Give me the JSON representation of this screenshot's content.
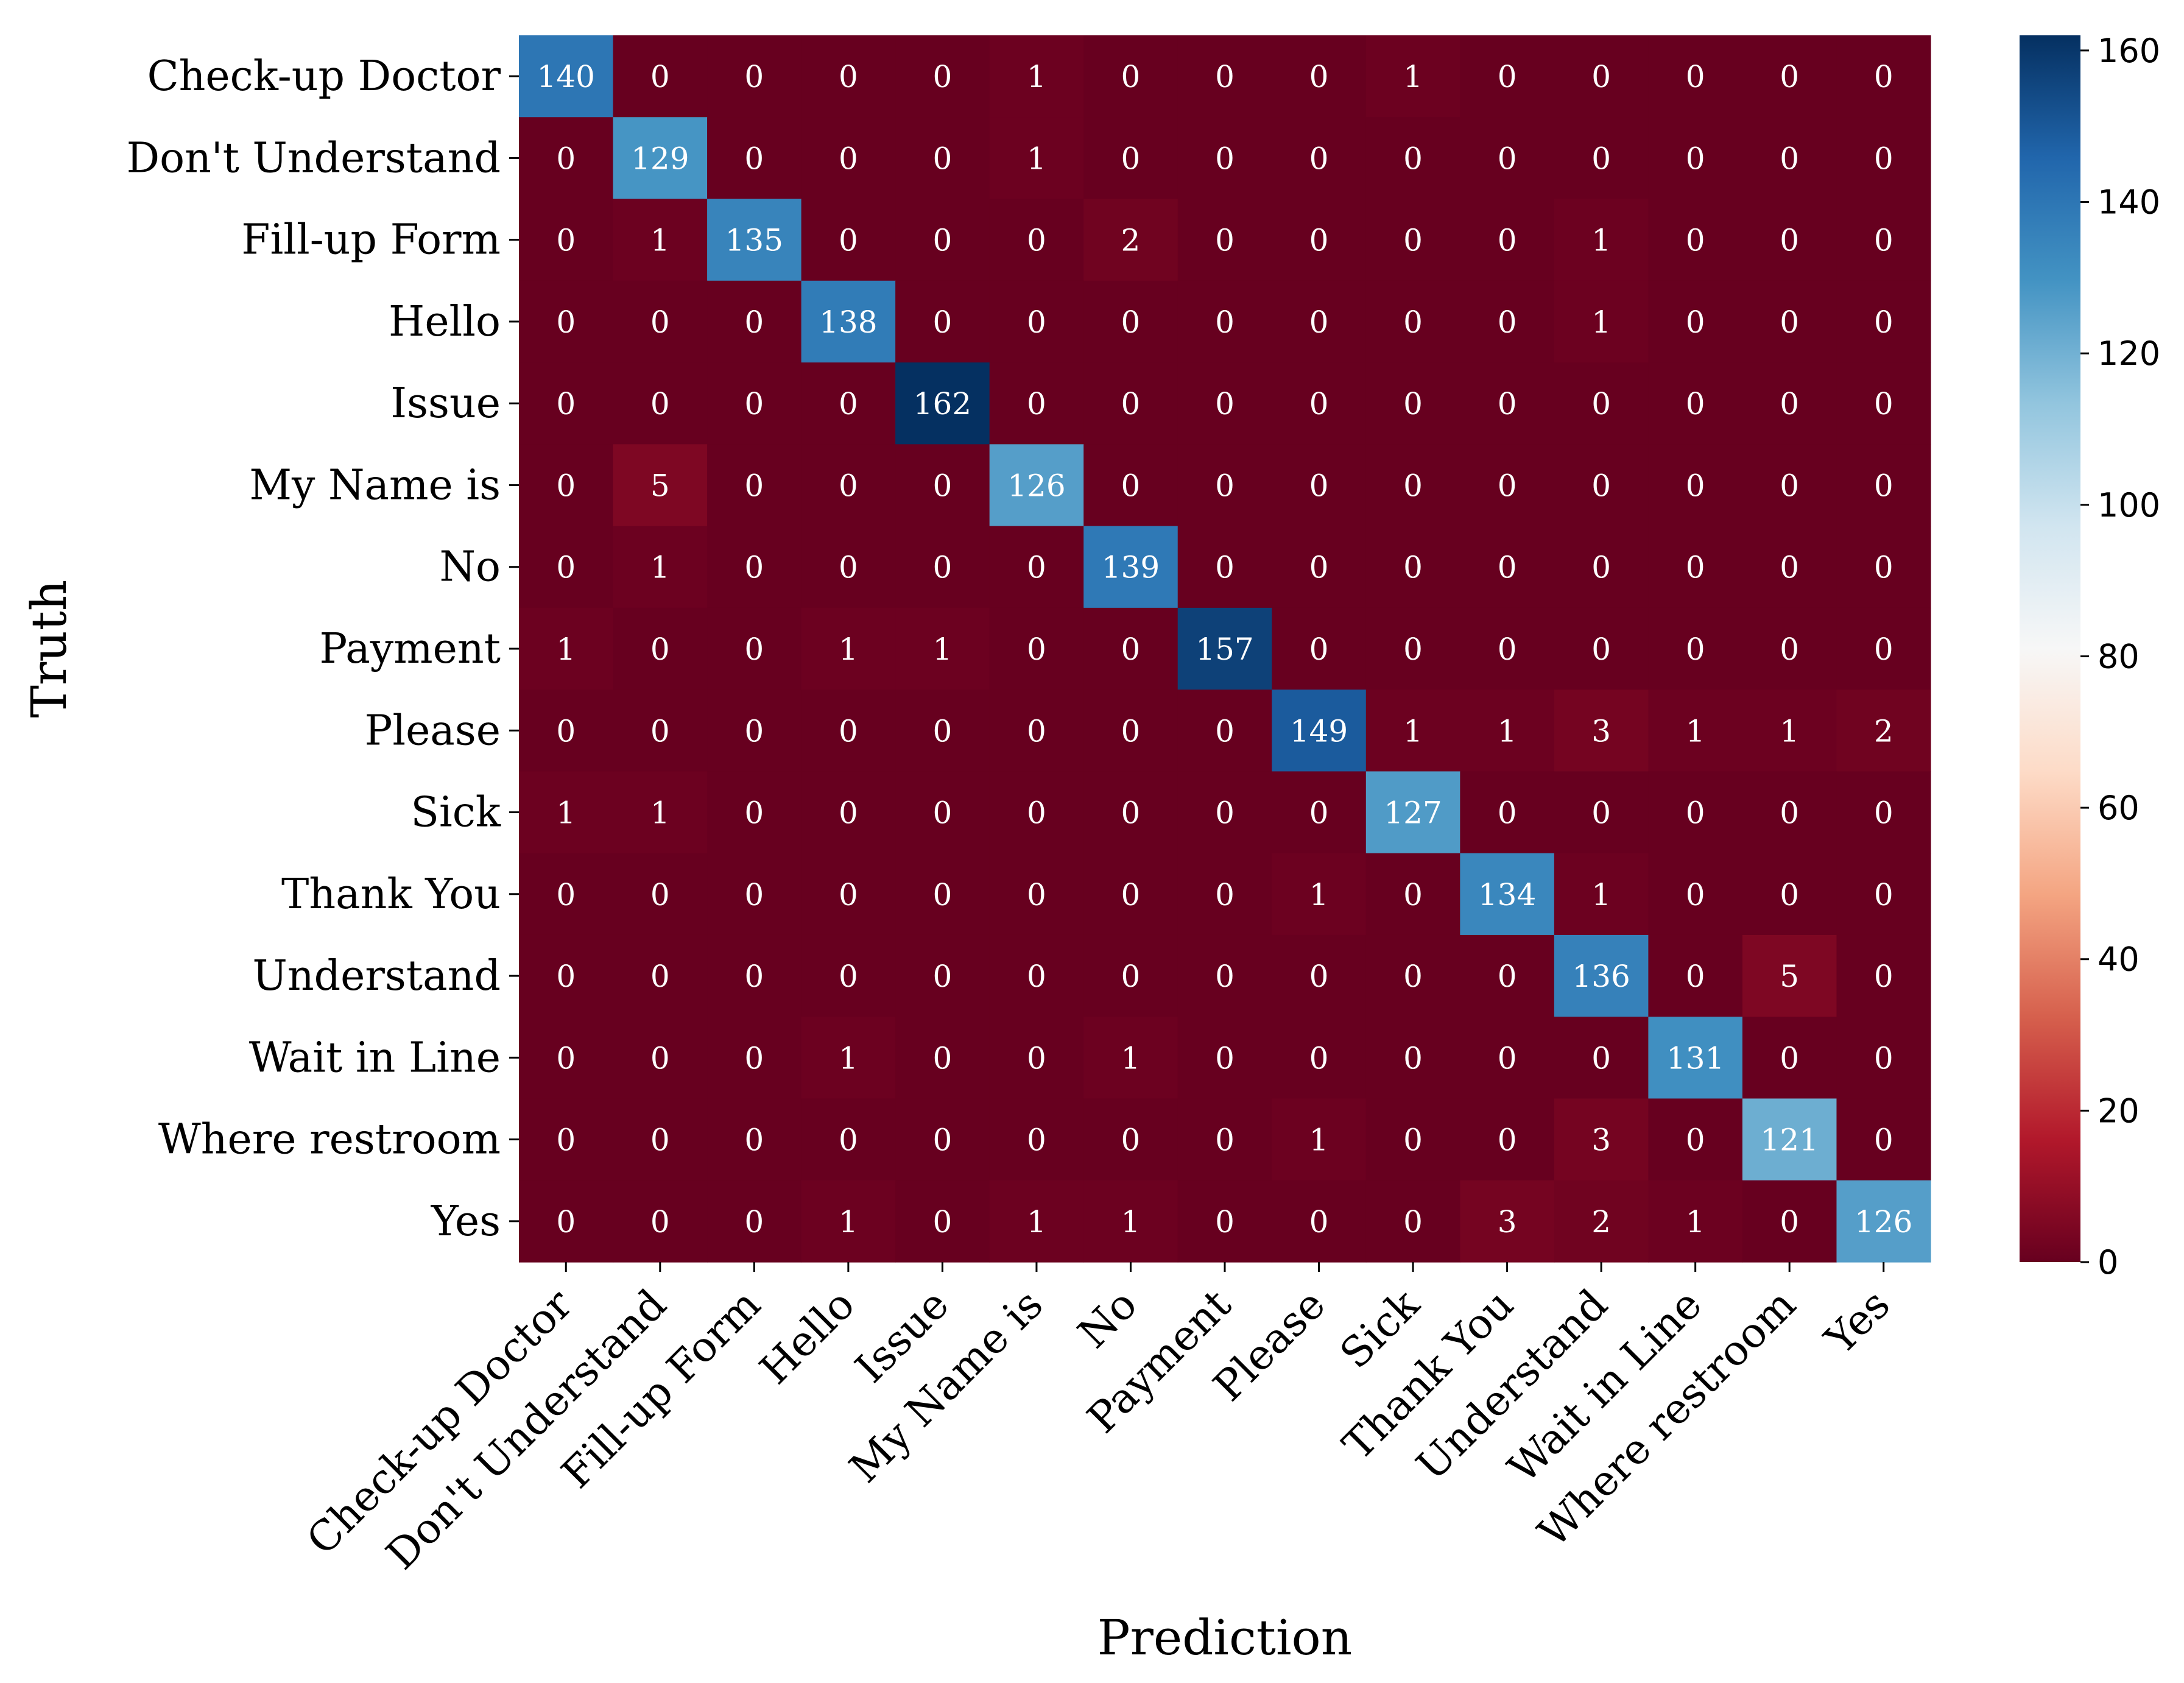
{
  "chart_data": {
    "type": "heatmap",
    "title": "",
    "xlabel": "Prediction",
    "ylabel": "Truth",
    "x_categories": [
      "Check-up Doctor",
      "Don't Understand",
      "Fill-up Form",
      "Hello",
      "Issue",
      "My Name is",
      "No",
      "Payment",
      "Please",
      "Sick",
      "Thank You",
      "Understand",
      "Wait in Line",
      "Where restroom",
      "Yes"
    ],
    "y_categories": [
      "Check-up Doctor",
      "Don't Understand",
      "Fill-up Form",
      "Hello",
      "Issue",
      "My Name is",
      "No",
      "Payment",
      "Please",
      "Sick",
      "Thank You",
      "Understand",
      "Wait in Line",
      "Where restroom",
      "Yes"
    ],
    "values": [
      [
        140,
        0,
        0,
        0,
        0,
        1,
        0,
        0,
        0,
        1,
        0,
        0,
        0,
        0,
        0
      ],
      [
        0,
        129,
        0,
        0,
        0,
        1,
        0,
        0,
        0,
        0,
        0,
        0,
        0,
        0,
        0
      ],
      [
        0,
        1,
        135,
        0,
        0,
        0,
        2,
        0,
        0,
        0,
        0,
        1,
        0,
        0,
        0
      ],
      [
        0,
        0,
        0,
        138,
        0,
        0,
        0,
        0,
        0,
        0,
        0,
        1,
        0,
        0,
        0
      ],
      [
        0,
        0,
        0,
        0,
        162,
        0,
        0,
        0,
        0,
        0,
        0,
        0,
        0,
        0,
        0
      ],
      [
        0,
        5,
        0,
        0,
        0,
        126,
        0,
        0,
        0,
        0,
        0,
        0,
        0,
        0,
        0
      ],
      [
        0,
        1,
        0,
        0,
        0,
        0,
        139,
        0,
        0,
        0,
        0,
        0,
        0,
        0,
        0
      ],
      [
        1,
        0,
        0,
        1,
        1,
        0,
        0,
        157,
        0,
        0,
        0,
        0,
        0,
        0,
        0
      ],
      [
        0,
        0,
        0,
        0,
        0,
        0,
        0,
        0,
        149,
        1,
        1,
        3,
        1,
        1,
        2
      ],
      [
        1,
        1,
        0,
        0,
        0,
        0,
        0,
        0,
        0,
        127,
        0,
        0,
        0,
        0,
        0
      ],
      [
        0,
        0,
        0,
        0,
        0,
        0,
        0,
        0,
        1,
        0,
        134,
        1,
        0,
        0,
        0
      ],
      [
        0,
        0,
        0,
        0,
        0,
        0,
        0,
        0,
        0,
        0,
        0,
        136,
        0,
        5,
        0
      ],
      [
        0,
        0,
        0,
        1,
        0,
        0,
        1,
        0,
        0,
        0,
        0,
        0,
        131,
        0,
        0
      ],
      [
        0,
        0,
        0,
        0,
        0,
        0,
        0,
        0,
        1,
        0,
        0,
        3,
        0,
        121,
        0
      ],
      [
        0,
        0,
        0,
        1,
        0,
        1,
        1,
        0,
        0,
        0,
        3,
        2,
        1,
        0,
        126
      ]
    ],
    "colormap": "RdBu",
    "colorbar": {
      "range": [
        0,
        162
      ],
      "ticks": [
        0,
        20,
        40,
        60,
        80,
        100,
        120,
        140,
        160
      ]
    },
    "grid": false,
    "legend": "none"
  }
}
